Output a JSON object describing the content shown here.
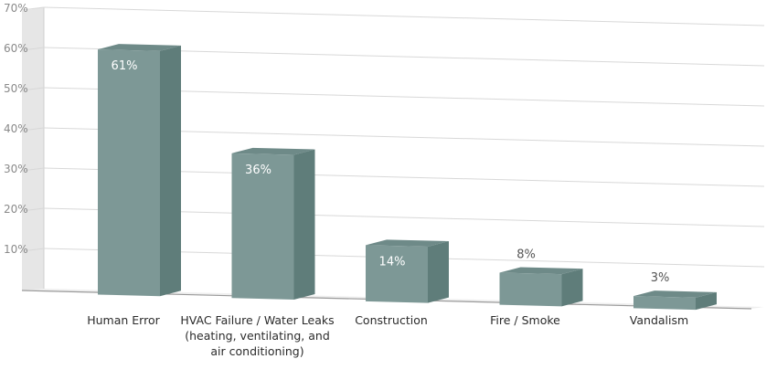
{
  "chart_data": {
    "type": "bar",
    "categories": [
      [
        "Human Error"
      ],
      [
        "HVAC Failure / Water Leaks",
        "(heating, ventilating, and",
        "air conditioning)"
      ],
      [
        "Construction"
      ],
      [
        "Fire / Smoke"
      ],
      [
        "Vandalism"
      ]
    ],
    "values": [
      61,
      36,
      14,
      8,
      3
    ],
    "data_labels": [
      "61%",
      "36%",
      "14%",
      "8%",
      "3%"
    ],
    "y_ticks": [
      "10%",
      "20%",
      "30%",
      "40%",
      "50%",
      "60%",
      "70%"
    ],
    "ylim": [
      0,
      70
    ],
    "grid": true,
    "colors": {
      "bar_front": "#7d9896",
      "bar_side": "#5f7d7a",
      "bar_top": "#6e8a88",
      "wall": "#e6e6e6",
      "grid": "#d8d8d8",
      "inside_label": "#ffffff",
      "outside_label": "#555555"
    }
  }
}
